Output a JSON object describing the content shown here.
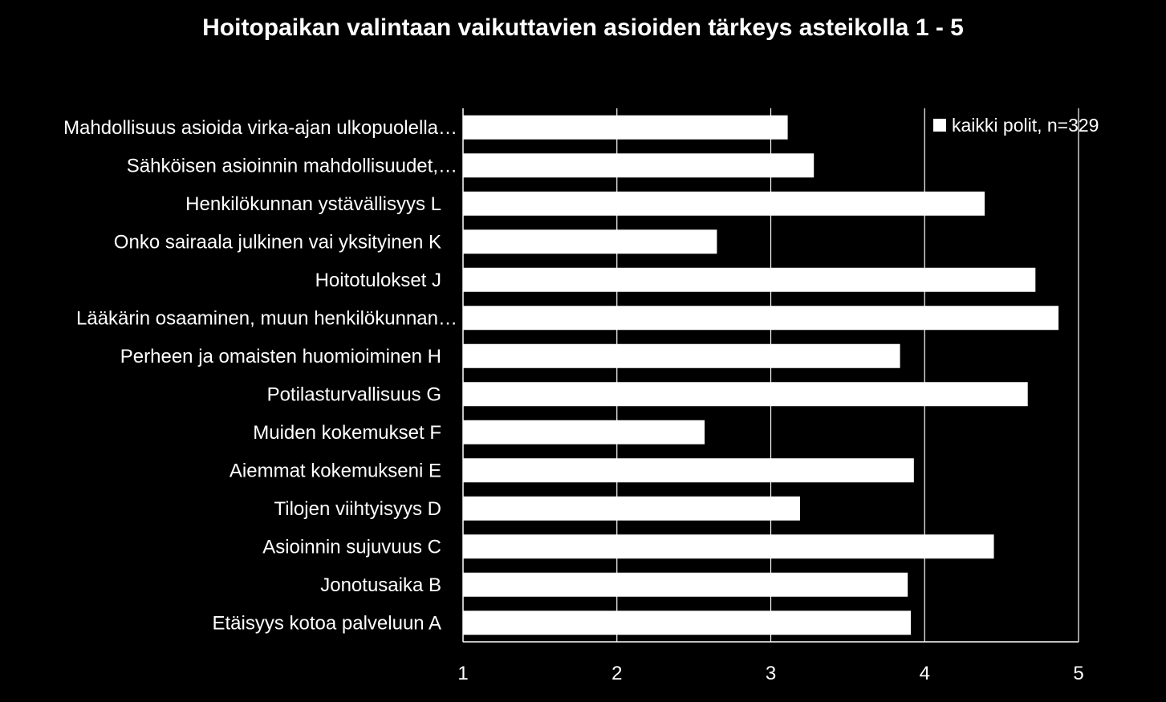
{
  "chart_data": {
    "type": "bar",
    "orientation": "horizontal",
    "title": "Hoitopaikan valintaan vaikuttavien asioiden tärkeys asteikolla 1 - 5",
    "categories": [
      "Mahdollisuus asioida virka-ajan ulkopuolella…",
      "Sähköisen asioinnin mahdollisuudet,…",
      "Henkilökunnan ystävällisyys L",
      "Onko sairaala julkinen vai yksityinen K",
      "Hoitotulokset J",
      "Lääkärin osaaminen, muun henkilökunnan…",
      "Perheen ja omaisten huomioiminen H",
      "Potilasturvallisuus G",
      "Muiden kokemukset F",
      "Aiemmat kokemukseni E",
      "Tilojen viihtyisyys D",
      "Asioinnin sujuvuus C",
      "Jonotusaika B",
      "Etäisyys kotoa palveluun A"
    ],
    "series": [
      {
        "name": "kaikki polit, n=329",
        "values": [
          3.11,
          3.28,
          4.39,
          2.65,
          4.72,
          4.87,
          3.84,
          4.67,
          2.57,
          3.93,
          3.19,
          4.45,
          3.89,
          3.91
        ]
      }
    ],
    "xlim": [
      1,
      5
    ],
    "ticks": [
      "1",
      "2",
      "3",
      "4",
      "5"
    ],
    "xlabel": "",
    "ylabel": "",
    "grid": true,
    "legend_position": "top-right",
    "bar_color": "#ffffff",
    "background_color": "#000000"
  }
}
